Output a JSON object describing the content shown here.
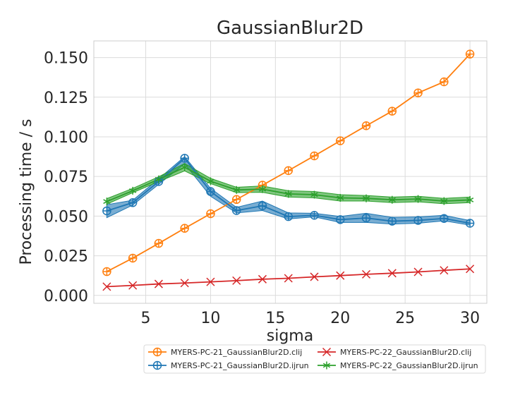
{
  "chart_data": {
    "type": "line",
    "title": "GaussianBlur2D",
    "xlabel": "sigma",
    "ylabel": "Processing time / s",
    "xlim": [
      1,
      31.3
    ],
    "ylim": [
      -0.005,
      0.1605
    ],
    "xticks": [
      5,
      10,
      15,
      20,
      25,
      30
    ],
    "xtick_labels": [
      "5",
      "10",
      "15",
      "20",
      "25",
      "30"
    ],
    "yticks": [
      0.0,
      0.025,
      0.05,
      0.075,
      0.1,
      0.125,
      0.15
    ],
    "ytick_labels": [
      "0.000",
      "0.025",
      "0.050",
      "0.075",
      "0.100",
      "0.125",
      "0.150"
    ],
    "grid": true,
    "legend_position": "bottom-right, below plot, 2 columns",
    "x": [
      2,
      4,
      6,
      8,
      10,
      12,
      14,
      16,
      18,
      20,
      22,
      24,
      26,
      28,
      30
    ],
    "series": [
      {
        "name": "MYERS-PC-21_GaussianBlur2D.clij",
        "color": "#ff7f0e",
        "marker": "circle-plus",
        "values": [
          0.015,
          0.0235,
          0.0328,
          0.0423,
          0.0515,
          0.0605,
          0.0695,
          0.0787,
          0.088,
          0.0975,
          0.107,
          0.1162,
          0.1277,
          0.1347,
          0.1522
        ]
      },
      {
        "name": "MYERS-PC-21_GaussianBlur2D.ijrun",
        "color": "#1f77b4",
        "marker": "circle-plus",
        "values": [
          0.0533,
          0.0585,
          0.0718,
          0.0865,
          0.0655,
          0.0535,
          0.0565,
          0.0497,
          0.0505,
          0.0478,
          0.0488,
          0.0468,
          0.0473,
          0.0485,
          0.0455
        ],
        "ci_lower": [
          0.049,
          0.057,
          0.07,
          0.083,
          0.0625,
          0.052,
          0.0535,
          0.0482,
          0.0495,
          0.046,
          0.046,
          0.045,
          0.0455,
          0.047,
          0.0443
        ],
        "ci_upper": [
          0.0572,
          0.06,
          0.0735,
          0.0875,
          0.0675,
          0.0555,
          0.0595,
          0.052,
          0.0518,
          0.0498,
          0.0518,
          0.0492,
          0.0495,
          0.0505,
          0.0472
        ]
      },
      {
        "name": "MYERS-PC-22_GaussianBlur2D.clij",
        "color": "#d62728",
        "marker": "x",
        "values": [
          0.0055,
          0.0063,
          0.0072,
          0.0078,
          0.0085,
          0.0093,
          0.0102,
          0.0108,
          0.0117,
          0.0125,
          0.0133,
          0.014,
          0.0148,
          0.0158,
          0.0167
        ]
      },
      {
        "name": "MYERS-PC-22_GaussianBlur2D.ijrun",
        "color": "#2ca02c",
        "marker": "star",
        "values": [
          0.0592,
          0.066,
          0.0732,
          0.0808,
          0.072,
          0.0665,
          0.067,
          0.064,
          0.0635,
          0.0615,
          0.0612,
          0.0603,
          0.0608,
          0.0595,
          0.0602
        ],
        "ci_lower": [
          0.0575,
          0.0648,
          0.0718,
          0.0785,
          0.0705,
          0.0648,
          0.065,
          0.062,
          0.0615,
          0.0595,
          0.0595,
          0.0585,
          0.059,
          0.0578,
          0.0585
        ],
        "ci_upper": [
          0.061,
          0.0675,
          0.0748,
          0.0832,
          0.0738,
          0.0682,
          0.069,
          0.066,
          0.0655,
          0.0635,
          0.063,
          0.062,
          0.0625,
          0.0612,
          0.062
        ]
      }
    ]
  }
}
